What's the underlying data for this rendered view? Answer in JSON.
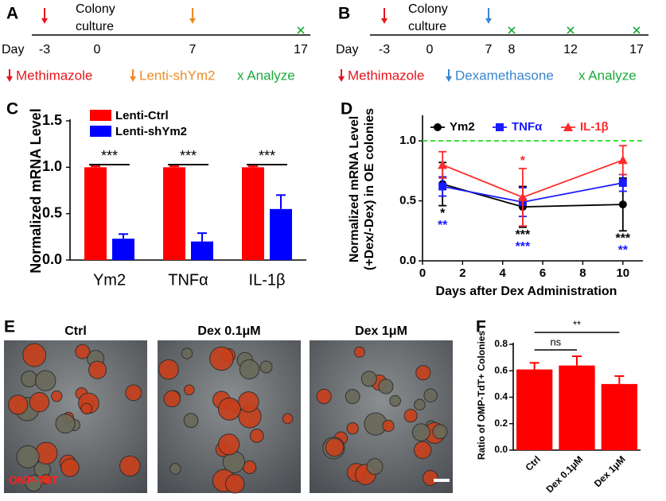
{
  "panel_labels": [
    "A",
    "B",
    "C",
    "D",
    "E",
    "F"
  ],
  "timelines": [
    {
      "day_label": "Day",
      "culture": [
        "Colony",
        "culture"
      ],
      "days": [
        {
          "label": "-3",
          "mark": "arrow",
          "color": "#e8141b"
        },
        {
          "label": "0"
        },
        {
          "label": "7",
          "mark": "arrow",
          "color": "#f08a24"
        },
        {
          "label": "17",
          "mark": "x",
          "color": "#1aaa3a"
        }
      ],
      "legend": [
        {
          "text": "Methimazole",
          "mark": "arrow",
          "color": "#e8141b"
        },
        {
          "text": "Lenti-shYm2",
          "mark": "arrow",
          "color": "#f08a24"
        },
        {
          "text": "x Analyze",
          "color": "#1aaa3a"
        }
      ]
    },
    {
      "day_label": "Day",
      "culture": [
        "Colony",
        "culture"
      ],
      "days": [
        {
          "label": "-3",
          "mark": "arrow",
          "color": "#e8141b"
        },
        {
          "label": "0"
        },
        {
          "label": "7",
          "mark": "arrow",
          "color": "#3a86d0"
        },
        {
          "label": "8",
          "mark": "x",
          "color": "#1aaa3a"
        },
        {
          "label": "12",
          "mark": "x",
          "color": "#1aaa3a"
        },
        {
          "label": "17",
          "mark": "x",
          "color": "#1aaa3a"
        }
      ],
      "legend": [
        {
          "text": "Methimazole",
          "mark": "arrow",
          "color": "#e8141b"
        },
        {
          "text": "Dexamethasone",
          "mark": "arrow",
          "color": "#3a86d0"
        },
        {
          "text": "x Analyze",
          "color": "#1aaa3a"
        }
      ]
    }
  ],
  "images": {
    "titles": [
      "Ctrl",
      "Dex 0.1μM",
      "Dex 1μM"
    ],
    "label": "OMP-TdT"
  },
  "chart_data": [
    {
      "type": "bar",
      "ylabel": "Normalized mRNA Level",
      "categories": [
        "Ym2",
        "TNFα",
        "IL-1β"
      ],
      "series": [
        {
          "name": "Lenti-Ctrl",
          "color": "#ff0000",
          "values": [
            1.0,
            1.0,
            1.0
          ],
          "errors": [
            0.01,
            0.01,
            0.01
          ]
        },
        {
          "name": "Lenti-shYm2",
          "color": "#0000ff",
          "values": [
            0.23,
            0.2,
            0.55
          ],
          "errors": [
            0.05,
            0.09,
            0.15
          ]
        }
      ],
      "annotations": [
        "***",
        "***",
        "***"
      ],
      "ylim": [
        0,
        1.5
      ],
      "yticks": [
        {
          "value": 0,
          "label": "0.0"
        },
        0.5,
        {
          "value": 1,
          "label": "1.0"
        },
        1.5
      ],
      "legend": "upper left"
    },
    {
      "type": "line",
      "ylabel": [
        "Normalized mRNA Level",
        "(+Dex/-Dex) in OE colonies"
      ],
      "xlabel": "Days after Dex Administration",
      "x": [
        1,
        5,
        10
      ],
      "series": [
        {
          "name": "Ym2",
          "color": "#000000",
          "marker": "circle",
          "values": [
            0.64,
            0.45,
            0.47
          ],
          "errors": [
            0.18,
            0.17,
            0.22
          ],
          "stars": [
            "*",
            "***",
            "***"
          ]
        },
        {
          "name": "TNFα",
          "color": "#1a1aff",
          "marker": "square",
          "values": [
            0.62,
            0.49,
            0.65
          ],
          "errors": [
            0.08,
            0.12,
            0.07
          ],
          "stars": [
            "**",
            "***",
            "**"
          ]
        },
        {
          "name": "IL-1β",
          "color": "#ff2a2a",
          "marker": "triangle",
          "values": [
            0.8,
            0.53,
            0.84
          ],
          "errors": [
            0.11,
            0.24,
            0.12
          ],
          "stars": [
            null,
            "*",
            null
          ]
        }
      ],
      "reference_line": {
        "value": 1,
        "color": "#33dd33"
      },
      "xlim": [
        0,
        11
      ],
      "xticks": [
        0,
        2,
        4,
        6,
        8,
        10
      ],
      "ylim": [
        0,
        1.2
      ],
      "yticks": [
        {
          "value": 0,
          "label": "0.0"
        },
        0.5,
        {
          "value": 1,
          "label": "1.0"
        }
      ],
      "legend": "top"
    },
    {
      "type": "bar",
      "ylabel": "Ratio of OMP-TdT+ Colonies",
      "categories": [
        "Ctrl",
        "Dex 0.1μM",
        "Dex 1μM"
      ],
      "values": [
        0.61,
        0.64,
        0.5
      ],
      "errors": [
        0.05,
        0.07,
        0.06
      ],
      "color": "#ff0000",
      "comparisons": [
        {
          "text": "ns",
          "from": 0,
          "to": 1
        },
        {
          "text": "**",
          "from": 0,
          "to": 2
        }
      ],
      "ylim": [
        0,
        0.8
      ],
      "yticks": [
        {
          "value": 0,
          "label": "0.0"
        },
        0.2,
        0.4,
        0.6,
        0.8
      ]
    }
  ]
}
